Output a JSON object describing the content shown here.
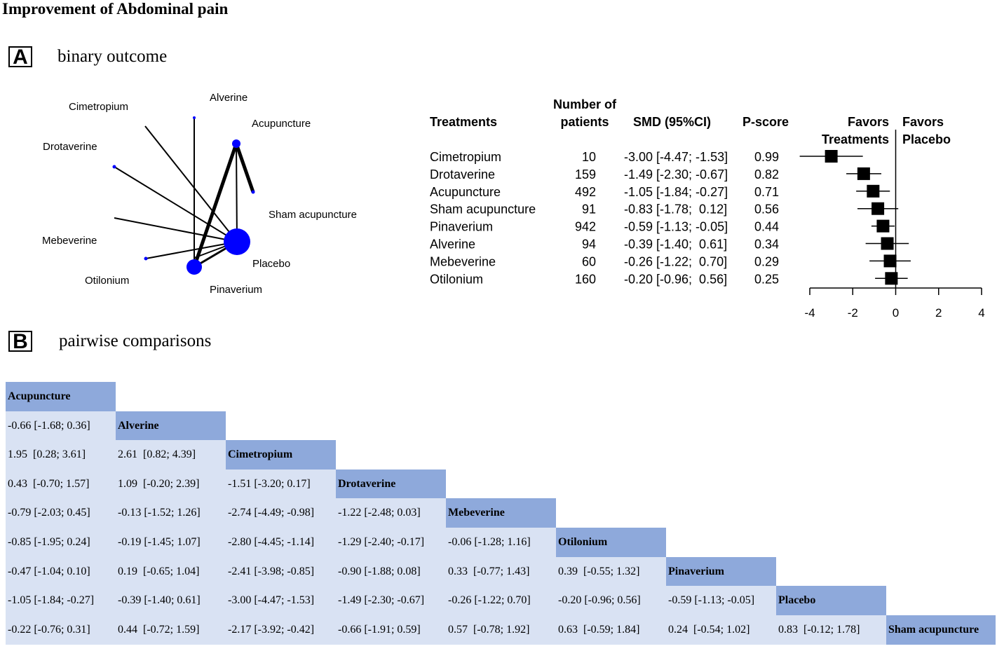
{
  "title": "Improvement of Abdominal pain",
  "panel_a": {
    "letter": "A",
    "subtitle": "binary outcome",
    "network": {
      "node_color": "#0000ff",
      "nodes": [
        {
          "name": "Cimetropium",
          "label": "Cimetropium"
        },
        {
          "name": "Alverine",
          "label": "Alverine"
        },
        {
          "name": "Acupuncture",
          "label": "Acupuncture"
        },
        {
          "name": "Drotaverine",
          "label": "Drotaverine"
        },
        {
          "name": "Sham acupuncture",
          "label": "Sham acupuncture"
        },
        {
          "name": "Mebeverine",
          "label": "Mebeverine"
        },
        {
          "name": "Placebo",
          "label": "Placebo"
        },
        {
          "name": "Otilonium",
          "label": "Otilonium"
        },
        {
          "name": "Pinaverium",
          "label": "Pinaverium"
        }
      ]
    },
    "forest": {
      "headers": {
        "treatments": "Treatments",
        "patients_1": "Number of",
        "patients_2": "patients",
        "smd": "SMD (95%CI)",
        "pscore": "P-score",
        "favors_left_1": "Favors",
        "favors_left_2": "Treatments",
        "favors_right_1": "Favors",
        "favors_right_2": "Placebo"
      },
      "axis_ticks": [
        -4,
        -2,
        0,
        2,
        4
      ],
      "xlim": [
        -4,
        4
      ]
    }
  },
  "chart_data": {
    "type": "forest",
    "xlim": [
      -4,
      4
    ],
    "reference_line": 0,
    "rows": [
      {
        "treatment": "Cimetropium",
        "patients": "10",
        "smd": -3.0,
        "lo": -4.47,
        "hi": -1.53,
        "ci_text": "-3.00 [-4.47; -1.53]",
        "pscore": "0.99"
      },
      {
        "treatment": "Drotaverine",
        "patients": "159",
        "smd": -1.49,
        "lo": -2.3,
        "hi": -0.67,
        "ci_text": "-1.49 [-2.30; -0.67]",
        "pscore": "0.82"
      },
      {
        "treatment": "Acupuncture",
        "patients": "492",
        "smd": -1.05,
        "lo": -1.84,
        "hi": -0.27,
        "ci_text": "-1.05 [-1.84; -0.27]",
        "pscore": "0.71"
      },
      {
        "treatment": "Sham acupuncture",
        "patients": "91",
        "smd": -0.83,
        "lo": -1.78,
        "hi": 0.12,
        "ci_text": "-0.83 [-1.78;  0.12]",
        "pscore": "0.56"
      },
      {
        "treatment": "Pinaverium",
        "patients": "942",
        "smd": -0.59,
        "lo": -1.13,
        "hi": -0.05,
        "ci_text": "-0.59 [-1.13; -0.05]",
        "pscore": "0.44"
      },
      {
        "treatment": "Alverine",
        "patients": "94",
        "smd": -0.39,
        "lo": -1.4,
        "hi": 0.61,
        "ci_text": "-0.39 [-1.40;  0.61]",
        "pscore": "0.34"
      },
      {
        "treatment": "Mebeverine",
        "patients": "60",
        "smd": -0.26,
        "lo": -1.22,
        "hi": 0.7,
        "ci_text": "-0.26 [-1.22;  0.70]",
        "pscore": "0.29"
      },
      {
        "treatment": "Otilonium",
        "patients": "160",
        "smd": -0.2,
        "lo": -0.96,
        "hi": 0.56,
        "ci_text": "-0.20 [-0.96;  0.56]",
        "pscore": "0.25"
      }
    ]
  },
  "panel_b": {
    "letter": "B",
    "subtitle": "pairwise comparisons",
    "colors": {
      "diagonal": "#8ea9db",
      "cell": "#d9e2f3"
    },
    "treatments": [
      "Acupuncture",
      "Alverine",
      "Cimetropium",
      "Drotaverine",
      "Mebeverine",
      "Otilonium",
      "Pinaverium",
      "Placebo",
      "Sham acupuncture"
    ],
    "rows": [
      [],
      [
        "-0.66 [-1.68; 0.36]"
      ],
      [
        "1.95  [0.28; 3.61]",
        "2.61  [0.82; 4.39]"
      ],
      [
        "0.43  [-0.70; 1.57]",
        "1.09  [-0.20; 2.39]",
        "-1.51 [-3.20; 0.17]"
      ],
      [
        "-0.79 [-2.03; 0.45]",
        "-0.13 [-1.52; 1.26]",
        "-2.74 [-4.49; -0.98]",
        "-1.22 [-2.48; 0.03]"
      ],
      [
        "-0.85 [-1.95; 0.24]",
        "-0.19 [-1.45; 1.07]",
        "-2.80 [-4.45; -1.14]",
        "-1.29 [-2.40; -0.17]",
        "-0.06 [-1.28; 1.16]"
      ],
      [
        "-0.47 [-1.04; 0.10]",
        "0.19  [-0.65; 1.04]",
        "-2.41 [-3.98; -0.85]",
        "-0.90 [-1.88; 0.08]",
        "0.33  [-0.77; 1.43]",
        "0.39  [-0.55; 1.32]"
      ],
      [
        "-1.05 [-1.84; -0.27]",
        "-0.39 [-1.40; 0.61]",
        "-3.00 [-4.47; -1.53]",
        "-1.49 [-2.30; -0.67]",
        "-0.26 [-1.22; 0.70]",
        "-0.20 [-0.96; 0.56]",
        "-0.59 [-1.13; -0.05]"
      ],
      [
        "-0.22 [-0.76; 0.31]",
        "0.44  [-0.72; 1.59]",
        "-2.17 [-3.92; -0.42]",
        "-0.66 [-1.91; 0.59]",
        "0.57  [-0.78; 1.92]",
        "0.63  [-0.59; 1.84]",
        "0.24  [-0.54; 1.02]",
        "0.83  [-0.12; 1.78]"
      ]
    ]
  }
}
